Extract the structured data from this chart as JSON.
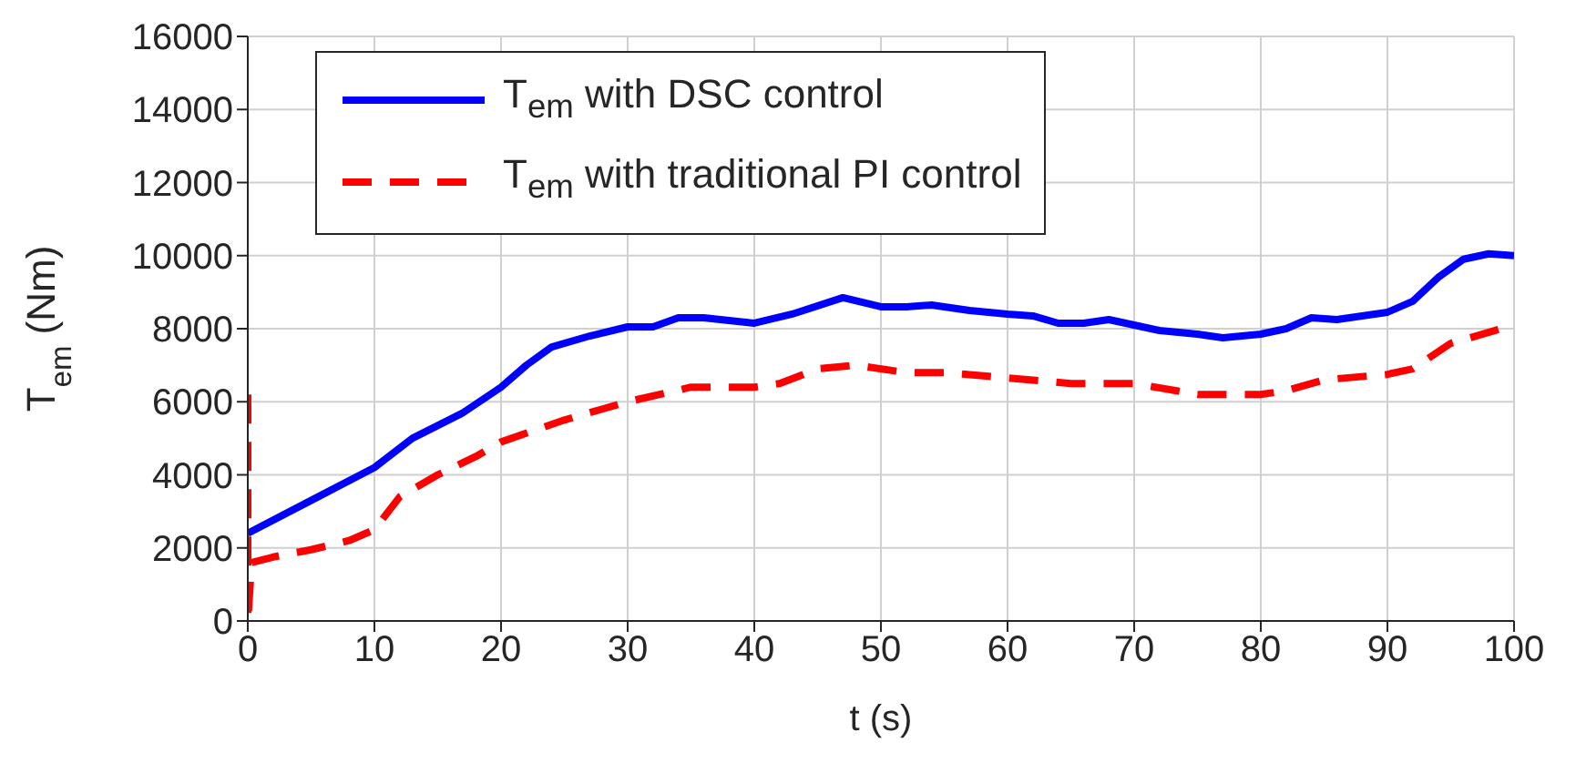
{
  "chart_data": {
    "type": "line",
    "xlabel": "t (s)",
    "ylabel": "T$_{em}$ (Nm)",
    "xlim": [
      0,
      100
    ],
    "xticks": [
      0,
      10,
      20,
      30,
      40,
      50,
      60,
      70,
      80,
      90,
      100
    ],
    "ylim": [
      0,
      16000
    ],
    "yticks": [
      0,
      2000,
      4000,
      6000,
      8000,
      10000,
      12000,
      14000,
      16000
    ],
    "grid": true,
    "legend": "top left",
    "marker": "none",
    "series": [
      {
        "name": "T$_{em}$ with DSC control",
        "color": "#0000ff",
        "line_style": "solid",
        "x": [
          0,
          5,
          10,
          13,
          17,
          20,
          22,
          24,
          27,
          30,
          32,
          34,
          36,
          40,
          43,
          47,
          50,
          52,
          54,
          57,
          60,
          62,
          64,
          66,
          68,
          70,
          72,
          75,
          77,
          80,
          82,
          84,
          86,
          88,
          90,
          92,
          94,
          96,
          98,
          100
        ],
        "values": [
          2400,
          3300,
          4200,
          5000,
          5700,
          6400,
          7000,
          7500,
          7800,
          8050,
          8050,
          8300,
          8300,
          8150,
          8400,
          8850,
          8600,
          8600,
          8650,
          8500,
          8400,
          8350,
          8150,
          8150,
          8250,
          8100,
          7950,
          7850,
          7750,
          7850,
          8000,
          8300,
          8250,
          8350,
          8450,
          8750,
          9400,
          9900,
          10050,
          10000
        ]
      },
      {
        "name": "T$_{em}$ with traditional PI control",
        "color": "#ff0000",
        "line_style": "dashed",
        "x": [
          0,
          0,
          0.3,
          2,
          5,
          8,
          10,
          12,
          15,
          18,
          20,
          25,
          28,
          30,
          35,
          40,
          42,
          45,
          48,
          52,
          55,
          60,
          65,
          70,
          75,
          80,
          82,
          85,
          90,
          92,
          95,
          100
        ],
        "values": [
          6200,
          0,
          1600,
          1750,
          1950,
          2200,
          2500,
          3400,
          4000,
          4500,
          4900,
          5500,
          5800,
          6000,
          6400,
          6400,
          6500,
          6900,
          7000,
          6800,
          6800,
          6650,
          6500,
          6500,
          6200,
          6200,
          6300,
          6600,
          6750,
          6900,
          7600,
          8100
        ]
      }
    ]
  }
}
